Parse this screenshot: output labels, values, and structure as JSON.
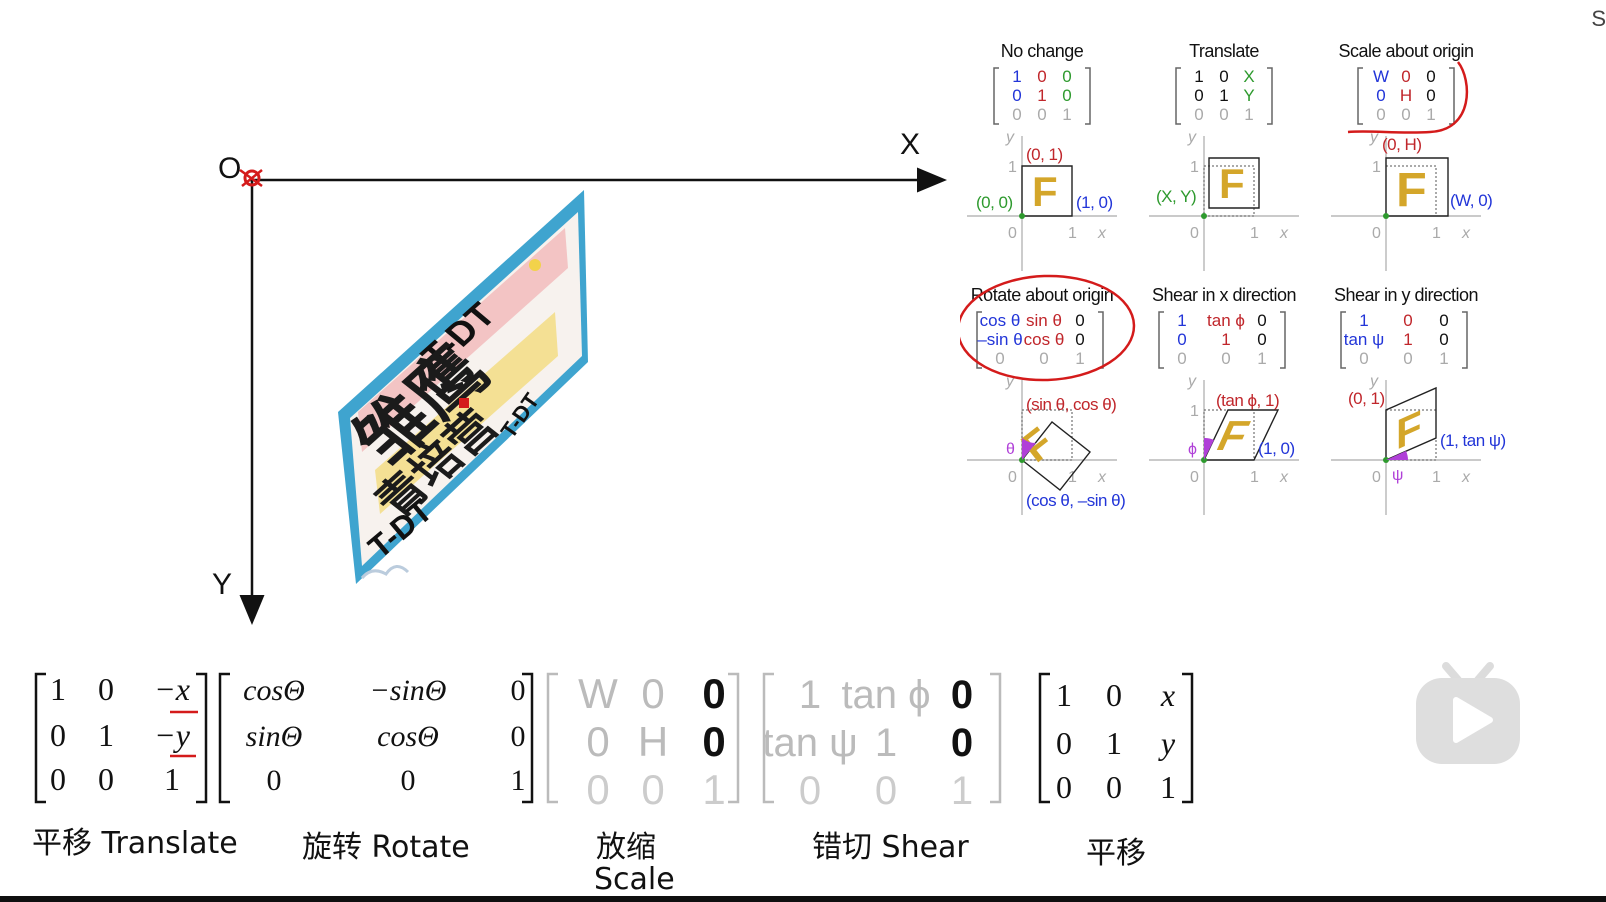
{
  "axes": {
    "origin_label": "O",
    "x_label": "X",
    "y_label": "Y"
  },
  "poster": {
    "top_text": "T-DT",
    "main_text": "雏鹰",
    "sub_text": "青培营",
    "side_text": "T-DT",
    "bottom_text": "T-DT"
  },
  "transforms": [
    {
      "title": "No change",
      "matrix": [
        [
          "1",
          "0",
          "0"
        ],
        [
          "0",
          "1",
          "0"
        ],
        [
          "0",
          "0",
          "1"
        ]
      ],
      "point_labels": [
        "(0, 1)",
        "(0, 0)",
        "(1, 0)"
      ],
      "axis_labels": [
        "y",
        "x",
        "0",
        "1",
        "1"
      ]
    },
    {
      "title": "Translate",
      "matrix": [
        [
          "1",
          "0",
          "X"
        ],
        [
          "0",
          "1",
          "Y"
        ],
        [
          "0",
          "0",
          "1"
        ]
      ],
      "point_labels": [
        "(X, Y)"
      ],
      "axis_labels": [
        "y",
        "x",
        "0",
        "1",
        "1"
      ]
    },
    {
      "title": "Scale about origin",
      "matrix": [
        [
          "W",
          "0",
          "0"
        ],
        [
          "0",
          "H",
          "0"
        ],
        [
          "0",
          "0",
          "1"
        ]
      ],
      "point_labels": [
        "(0, H)",
        "(W, 0)"
      ],
      "axis_labels": [
        "y",
        "x",
        "0",
        "1",
        "1"
      ]
    },
    {
      "title": "Rotate about origin",
      "matrix": [
        [
          "cos θ",
          "sin θ",
          "0"
        ],
        [
          "–sin θ",
          "cos θ",
          "0"
        ],
        [
          "0",
          "0",
          "1"
        ]
      ],
      "point_labels": [
        "(sin θ, cos θ)",
        "(cos θ, –sin θ)"
      ],
      "angle_label": "θ",
      "axis_labels": [
        "y",
        "x",
        "0",
        "1"
      ]
    },
    {
      "title": "Shear in x direction",
      "matrix": [
        [
          "1",
          "tan ϕ",
          "0"
        ],
        [
          "0",
          "1",
          "0"
        ],
        [
          "0",
          "0",
          "1"
        ]
      ],
      "point_labels": [
        "(tan ϕ, 1)",
        "(1, 0)"
      ],
      "angle_label": "ϕ",
      "axis_labels": [
        "y",
        "x",
        "0",
        "1",
        "1"
      ]
    },
    {
      "title": "Shear in y direction",
      "matrix": [
        [
          "1",
          "0",
          "0"
        ],
        [
          "tan ψ",
          "1",
          "0"
        ],
        [
          "0",
          "0",
          "1"
        ]
      ],
      "point_labels": [
        "(0, 1)",
        "(1, tan ψ)"
      ],
      "angle_label": "ψ",
      "axis_labels": [
        "y",
        "x",
        "0",
        "1"
      ]
    }
  ],
  "bottom_matrices": {
    "translate": [
      [
        "1",
        "0",
        "−x"
      ],
      [
        "0",
        "1",
        "−y"
      ],
      [
        "0",
        "0",
        "1"
      ]
    ],
    "rotate": [
      [
        "cosΘ",
        "−sinΘ",
        "0"
      ],
      [
        "sinΘ",
        "cosΘ",
        "0"
      ],
      [
        "0",
        "0",
        "1"
      ]
    ],
    "scale": [
      [
        "W",
        "0",
        "0"
      ],
      [
        "0",
        "H",
        "0"
      ],
      [
        "0",
        "0",
        "1"
      ]
    ],
    "shear": [
      [
        "1",
        "tan ϕ",
        "0"
      ],
      [
        "tan ψ",
        "1",
        "0"
      ],
      [
        "0",
        "0",
        "1"
      ]
    ],
    "translate_back": [
      [
        "1",
        "0",
        "x"
      ],
      [
        "0",
        "1",
        "y"
      ],
      [
        "0",
        "0",
        "1"
      ]
    ]
  },
  "bottom_labels": {
    "translate": "平移 Translate",
    "rotate": "旋转 Rotate",
    "scale_line1": "放缩",
    "scale_line2": "Scale",
    "shear": "错切 Shear",
    "translate_back": "平移"
  },
  "glyph_F": "F",
  "edge_char": "S",
  "colors": {
    "annotation_red": "#d41b1b",
    "blue": "#2235d8",
    "red": "#c0262b",
    "green": "#2e9a2e",
    "gray": "#aaaaaa",
    "poster_blue": "#3fa4cf",
    "F_gold": "#d4a62a",
    "purple": "#b040d8"
  },
  "icons": [
    "play-icon"
  ]
}
